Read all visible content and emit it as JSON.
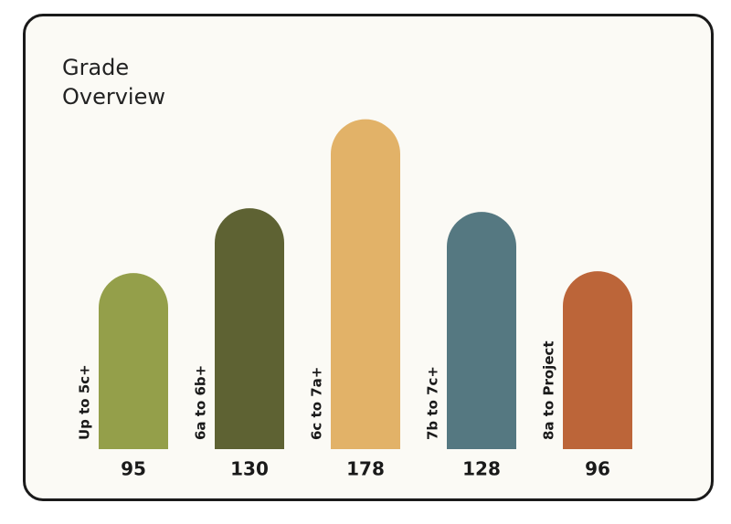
{
  "chart_data": {
    "type": "bar",
    "title": "Grade Overview",
    "categories": [
      "Up to 5c+",
      "6a to 6b+",
      "6c to 7a+",
      "7b to 7c+",
      "8a to Project"
    ],
    "values": [
      95,
      130,
      178,
      128,
      96
    ],
    "colors": [
      "#949f4a",
      "#5e6233",
      "#e2b268",
      "#557881",
      "#bc6539"
    ]
  }
}
